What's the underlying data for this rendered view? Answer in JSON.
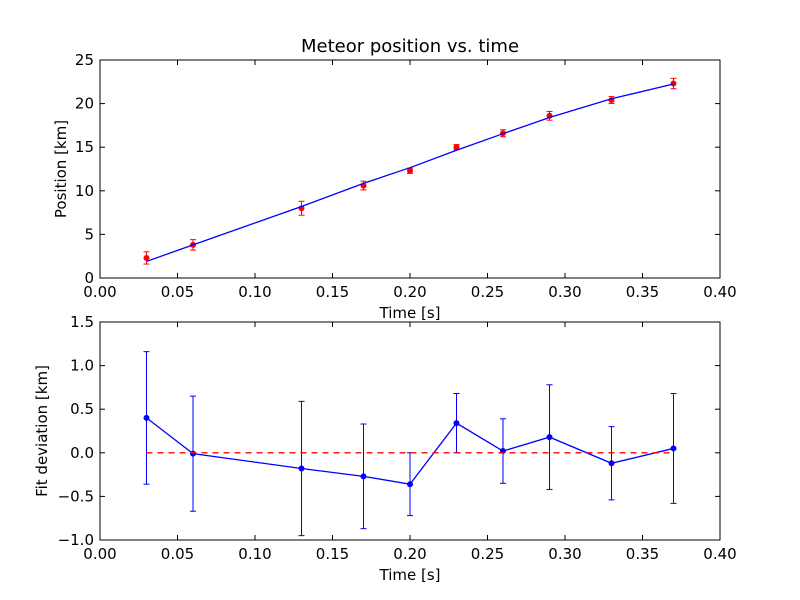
{
  "chart_data": [
    {
      "type": "scatter",
      "title": "Meteor position vs. time",
      "xlabel": "Time [s]",
      "ylabel": "Position [km]",
      "xlim": [
        0.0,
        0.4
      ],
      "ylim": [
        0,
        25
      ],
      "xticks": [
        "0.00",
        "0.05",
        "0.10",
        "0.15",
        "0.20",
        "0.25",
        "0.30",
        "0.35",
        "0.40"
      ],
      "yticks": [
        "0",
        "5",
        "10",
        "15",
        "20",
        "25"
      ],
      "grid": false,
      "series": [
        {
          "kind": "errorbar-points",
          "color": "#ff0000",
          "x": [
            0.03,
            0.06,
            0.13,
            0.17,
            0.2,
            0.23,
            0.26,
            0.29,
            0.33,
            0.37
          ],
          "y": [
            2.3,
            3.8,
            8.0,
            10.6,
            12.3,
            15.0,
            16.6,
            18.6,
            20.4,
            22.3
          ],
          "yerr": [
            0.7,
            0.6,
            0.8,
            0.5,
            0.3,
            0.3,
            0.4,
            0.5,
            0.4,
            0.6
          ]
        },
        {
          "kind": "fit-line",
          "color": "#0000ff",
          "x": [
            0.03,
            0.06,
            0.13,
            0.17,
            0.2,
            0.23,
            0.26,
            0.29,
            0.33,
            0.37
          ],
          "y": [
            1.9,
            3.8,
            8.2,
            10.85,
            12.65,
            14.65,
            16.55,
            18.4,
            20.55,
            22.25
          ]
        }
      ]
    },
    {
      "type": "line",
      "xlabel": "Time [s]",
      "ylabel": "Fit deviation [km]",
      "xlim": [
        0.0,
        0.4
      ],
      "ylim": [
        -1.0,
        1.5
      ],
      "xticks": [
        "0.00",
        "0.05",
        "0.10",
        "0.15",
        "0.20",
        "0.25",
        "0.30",
        "0.35",
        "0.40"
      ],
      "yticks": [
        "−1.0",
        "−0.5",
        "0.0",
        "0.5",
        "1.0",
        "1.5"
      ],
      "grid": false,
      "series": [
        {
          "kind": "errorbar-line",
          "color": "#0000ff",
          "x": [
            0.03,
            0.06,
            0.13,
            0.17,
            0.2,
            0.23,
            0.26,
            0.29,
            0.33,
            0.37
          ],
          "y": [
            0.4,
            -0.01,
            -0.18,
            -0.27,
            -0.36,
            0.34,
            0.02,
            0.18,
            -0.12,
            0.05
          ],
          "yerr": [
            0.76,
            0.66,
            0.77,
            0.6,
            0.36,
            0.34,
            0.37,
            0.6,
            0.42,
            0.63
          ]
        },
        {
          "kind": "reference-line",
          "color": "#ff0000",
          "style": "dashed",
          "x": [
            0.03,
            0.37
          ],
          "y": [
            0.0,
            0.0
          ]
        }
      ]
    }
  ]
}
